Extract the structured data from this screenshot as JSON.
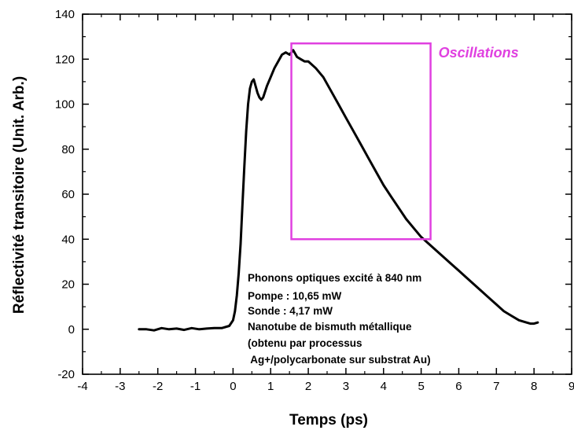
{
  "chart_data": {
    "type": "line",
    "xlabel": "Temps (ps)",
    "ylabel": "Réflectivité transitoire (Unit. Arb.)",
    "xlim": [
      -4,
      9
    ],
    "ylim": [
      -20,
      140
    ],
    "x_ticks": [
      "-4",
      "-3",
      "-2",
      "-1",
      "0",
      "1",
      "2",
      "3",
      "4",
      "5",
      "6",
      "7",
      "8",
      "9"
    ],
    "y_ticks": [
      "-20",
      "0",
      "20",
      "40",
      "60",
      "80",
      "100",
      "120",
      "140"
    ],
    "grid": false,
    "line_color": "#000000",
    "series": [
      {
        "x": [
          -2.5,
          -2.3,
          -2.1,
          -1.9,
          -1.7,
          -1.5,
          -1.3,
          -1.1,
          -0.9,
          -0.7,
          -0.5,
          -0.3,
          -0.1,
          0.0,
          0.05,
          0.1,
          0.15,
          0.2,
          0.25,
          0.3,
          0.35,
          0.4,
          0.45,
          0.5,
          0.55,
          0.6,
          0.65,
          0.7,
          0.75,
          0.8,
          0.9,
          1.0,
          1.1,
          1.2,
          1.3,
          1.4,
          1.5,
          1.6,
          1.7,
          1.8,
          1.9,
          2.0,
          2.2,
          2.4,
          2.6,
          2.8,
          3.0,
          3.2,
          3.4,
          3.6,
          3.8,
          4.0,
          4.2,
          4.4,
          4.6,
          4.8,
          5.0,
          5.2,
          5.4,
          5.6,
          5.8,
          6.0,
          6.2,
          6.4,
          6.6,
          6.8,
          7.0,
          7.2,
          7.4,
          7.6,
          7.8,
          7.9,
          8.0,
          8.1
        ],
        "y": [
          0,
          0,
          -0.5,
          0.5,
          0,
          0.3,
          -0.3,
          0.5,
          0,
          0.3,
          0.5,
          0.5,
          1.5,
          4,
          8,
          15,
          25,
          38,
          55,
          72,
          88,
          100,
          107,
          110,
          111,
          108,
          105,
          103,
          102,
          103,
          108,
          112,
          116,
          119,
          122,
          123,
          122,
          124,
          121,
          120,
          119,
          119,
          116,
          112,
          106,
          100,
          94,
          88,
          82,
          76,
          70,
          64,
          59,
          54,
          49,
          45,
          41,
          38,
          35,
          32,
          29,
          26,
          23,
          20,
          17,
          14,
          11,
          8,
          6,
          4,
          3,
          2.5,
          2.5,
          3
        ]
      }
    ]
  },
  "annotations": {
    "box_label": "Oscillations",
    "box_color": "#e040e0",
    "box_x": [
      1.55,
      5.25
    ],
    "box_y": [
      40,
      127
    ],
    "notes": [
      "Phonons optiques excité à 840 nm",
      "Pompe : 10,65 mW",
      "Sonde : 4,17 mW",
      "Nanotube de bismuth métallique",
      "(obtenu par processus",
      " Ag+/polycarbonate sur substrat Au)"
    ]
  }
}
